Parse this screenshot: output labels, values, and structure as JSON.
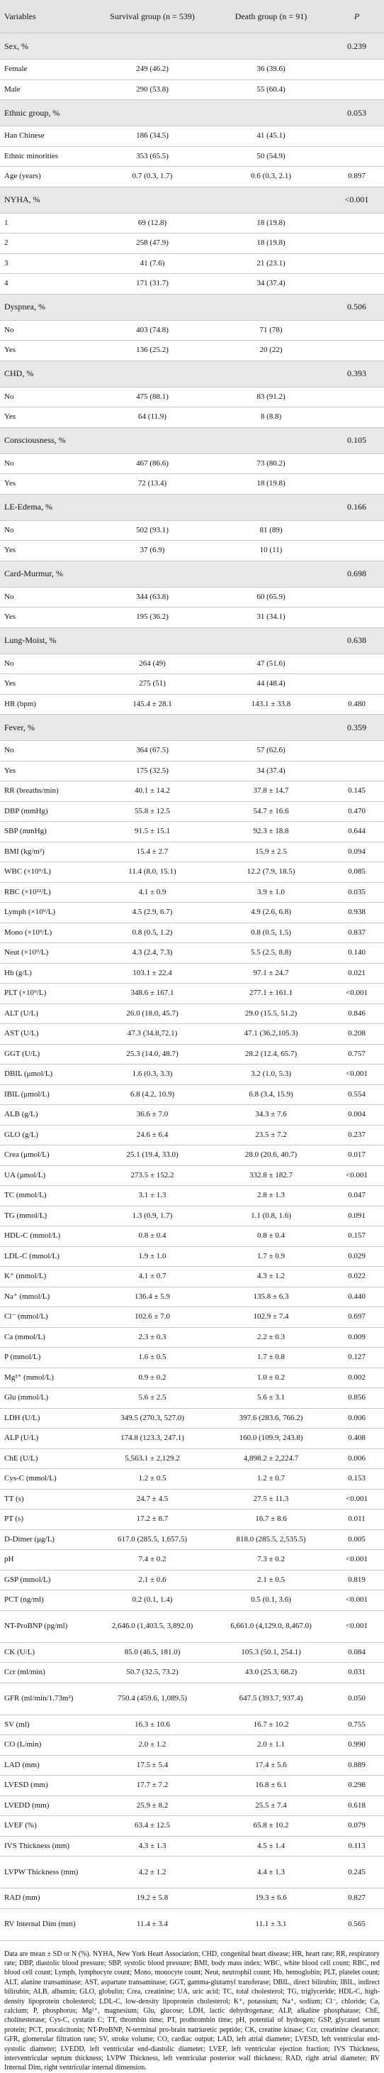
{
  "table": {
    "header": [
      "Variables",
      "Survival group (n = 539)",
      "Death group (n = 91)",
      "P"
    ],
    "rows": [
      {
        "section": "Sex, %",
        "p": "0.239"
      },
      [
        "Female",
        "249 (46.2)",
        "36 (39.6)"
      ],
      [
        "Male",
        "290 (53.8)",
        "55 (60.4)"
      ],
      {
        "section": "Ethnic group, %",
        "p": "0.053"
      },
      [
        "Han Chinese",
        "186 (34.5)",
        "41 (45.1)"
      ],
      [
        "Ethnic minorities",
        "353 (65.5)",
        "50 (54.9)"
      ],
      [
        "Age (years)",
        "0.7 (0.3, 1.7)",
        "0.6 (0.3, 2.1)",
        "0.897"
      ],
      {
        "section": "NYHA, %",
        "p": "<0.001"
      },
      [
        "1",
        "69 (12.8)",
        "18 (19.8)"
      ],
      [
        "2",
        "258 (47.9)",
        "18 (19.8)"
      ],
      [
        "3",
        "41 (7.6)",
        "21 (23.1)"
      ],
      [
        "4",
        "171 (31.7)",
        "34 (37.4)"
      ],
      {
        "section": "Dyspnea, %",
        "p": "0.506"
      },
      [
        "No",
        "403 (74.8)",
        "71 (78)"
      ],
      [
        "Yes",
        "136 (25.2)",
        "20 (22)"
      ],
      {
        "section": "CHD, %",
        "p": "0.393"
      },
      [
        "No",
        "475 (88.1)",
        "83 (91.2)"
      ],
      [
        "Yes",
        "64 (11.9)",
        "8 (8.8)"
      ],
      {
        "section": "Consciousness, %",
        "p": "0.105"
      },
      [
        "No",
        "467 (86.6)",
        "73 (80.2)"
      ],
      [
        "Yes",
        "72 (13.4)",
        "18 (19.8)"
      ],
      {
        "section": "LE-Edema, %",
        "p": "0.166"
      },
      [
        "No",
        "502 (93.1)",
        "81 (89)"
      ],
      [
        "Yes",
        "37 (6.9)",
        "10 (11)"
      ],
      {
        "section": "Card-Murmur, %",
        "p": "0.698"
      },
      [
        "No",
        "344 (63.8)",
        "60 (65.9)"
      ],
      [
        "Yes",
        "195 (36.2)",
        "31 (34.1)"
      ],
      {
        "section": "Lung-Moist, %",
        "p": "0.638"
      },
      [
        "No",
        "264 (49)",
        "47 (51.6)"
      ],
      [
        "Yes",
        "275 (51)",
        "44 (48.4)"
      ],
      [
        "HR (bpm)",
        "145.4 ± 28.1",
        "143.1 ± 33.8",
        "0.480"
      ],
      {
        "section": "Fever, %",
        "p": "0.359"
      },
      [
        "No",
        "364 (67.5)",
        "57 (62.6)"
      ],
      [
        "Yes",
        "175 (32.5)",
        "34 (37.4)"
      ],
      [
        "RR (breaths/min)",
        "40.1 ± 14.2",
        "37.8 ± 14.7",
        "0.145"
      ],
      [
        "DBP (mmHg)",
        "55.8 ± 12.5",
        "54.7 ± 16.6",
        "0.470"
      ],
      [
        "SBP (mmHg)",
        "91.5 ± 15.1",
        "92.3 ± 18.8",
        "0.644"
      ],
      [
        "BMI (kg/m²)",
        "15.4 ± 2.7",
        "15.9 ± 2.5",
        "0.094"
      ],
      [
        "WBC (×10⁹/L)",
        "11.4 (8.0, 15.1)",
        "12.2 (7.9, 18.5)",
        "0.085"
      ],
      [
        "RBC (×10¹²/L)",
        "4.1 ± 0.9",
        "3.9 ± 1.0",
        "0.035"
      ],
      [
        "Lymph (×10⁹/L)",
        "4.5 (2.9, 6.7)",
        "4.9 (2.6, 6.8)",
        "0.938"
      ],
      [
        "Mono (×10⁹/L)",
        "0.8 (0.5, 1.2)",
        "0.8 (0.5, 1.5)",
        "0.837"
      ],
      [
        "Neut (×10⁹/L)",
        "4.3 (2.4, 7.3)",
        "5.5 (2.5, 8.8)",
        "0.140"
      ],
      [
        "Hb (g/L)",
        "103.1 ± 22.4",
        "97.1 ± 24.7",
        "0.021"
      ],
      [
        "PLT (×10⁹/L)",
        "348.6 ± 167.1",
        "277.1 ± 161.1",
        "<0.001"
      ],
      [
        "ALT (U/L)",
        "26.0 (18.0, 45.7)",
        "29.0 (15.5, 51.2)",
        "0.846"
      ],
      [
        "AST (U/L)",
        "47.3 (34.8,72.1)",
        "47.1 (36.2,105.3)",
        "0.208"
      ],
      [
        "GGT (U/L)",
        "25.3 (14.0, 48.7)",
        "28.2 (12.4, 65.7)",
        "0.757"
      ],
      [
        "DBIL (μmol/L)",
        "1.6 (0.3, 3.3)",
        "3.2 (1.0, 5.3)",
        "<0.001"
      ],
      [
        "IBIL (μmol/L)",
        "6.8 (4.2, 10.9)",
        "6.8 (3.4, 15.9)",
        "0.554"
      ],
      [
        "ALB (g/L)",
        "36.6 ± 7.0",
        "34.3 ± 7.6",
        "0.004"
      ],
      [
        "GLO (g/L)",
        "24.6 ± 6.4",
        "23.5 ± 7.2",
        "0.237"
      ],
      [
        "Crea (μmol/L)",
        "25.1 (19.4, 33.0)",
        "28.0 (20.6, 40.7)",
        "0.017"
      ],
      [
        "UA (μmol/L)",
        "273.5 ± 152.2",
        "332.8 ± 182.7",
        "<0.001"
      ],
      [
        "TC (mmol/L)",
        "3.1 ± 1.3",
        "2.8 ± 1.3",
        "0.047"
      ],
      [
        "TG (mmol/L)",
        "1.3 (0.9, 1.7)",
        "1.1 (0.8, 1.6)",
        "0.091"
      ],
      [
        "HDL-C (mmol/L)",
        "0.8 ± 0.4",
        "0.8 ± 0.4",
        "0.157"
      ],
      [
        "LDL-C (mmol/L)",
        "1.9 ± 1.0",
        "1.7 ± 0.9",
        "0.029"
      ],
      [
        "K⁺ (mmol/L)",
        "4.1 ± 0.7",
        "4.3 ± 1.2",
        "0.022"
      ],
      [
        "Na⁺ (mmol/L)",
        "136.4 ± 5.9",
        "135.8 ± 6.3",
        "0.440"
      ],
      [
        "Cl⁻ (mmol/L)",
        "102.6 ± 7.0",
        "102.9 ± 7.4",
        "0.697"
      ],
      [
        "Ca (mmol/L)",
        "2.3 ± 0.3",
        "2.2 ± 0.3",
        "0.009"
      ],
      [
        "P (mmol/L)",
        "1.6 ± 0.5",
        "1.7 ± 0.8",
        "0.127"
      ],
      [
        "Mg²⁺ (mmol/L)",
        "0.9 ± 0.2",
        "1.0 ± 0.2",
        "0.002"
      ],
      [
        "Glu (mmol/L)",
        "5.6 ± 2.5",
        "5.6 ± 3.1",
        "0.856"
      ],
      [
        "LDH (U/L)",
        "349.5 (270.3, 527.0)",
        "397.6 (283.6, 766.2)",
        "0.006"
      ],
      [
        "ALP (U/L)",
        "174.8 (123.3, 247.1)",
        "160.0 (109.9, 243.8)",
        "0.408"
      ],
      [
        "ChE (U/L)",
        "5,563.1 ± 2,129.2",
        "4,898.2 ± 2,224.7",
        "0.006"
      ],
      [
        "Cys-C (mmol/L)",
        "1.2 ± 0.5",
        "1.2 ± 0.7",
        "0.153"
      ],
      [
        "TT (s)",
        "24.7 ± 4.5",
        "27.5 ± 11.3",
        "<0.001"
      ],
      [
        "PT (s)",
        "17.2 ± 8.7",
        "16.7 ± 8.6",
        "0.011"
      ],
      [
        "D-Dimer (μg/L)",
        "617.0 (285.5, 1,657.5)",
        "818.0 (285.5, 2,535.5)",
        "0.005"
      ],
      [
        "pH",
        "7.4 ± 0.2",
        "7.3 ± 0.2",
        "<0.001"
      ],
      [
        "GSP (mmol/L)",
        "2.1 ± 0.6",
        "2.1 ± 0.5",
        "0.819"
      ],
      [
        "PCT (ng/ml)",
        "0.2 (0.1, 1.4)",
        "0.5 (0.1, 3.6)",
        "<0.001"
      ],
      [
        "NT-ProBNP (pg/ml)",
        "2,646.0 (1,403.5, 3,892.0)",
        "6,661.0 (4,129.0, 8,467.0)",
        "<0.001"
      ],
      [
        "CK (U/L)",
        "85.0 (46.5, 181.0)",
        "105.3 (50.1, 254.1)",
        "0.084"
      ],
      [
        "Ccr (ml/min)",
        "50.7 (32.5, 73.2)",
        "43.0 (25.3, 68.2)",
        "0.031"
      ],
      [
        "GFR (ml/min/1.73m²)",
        "750.4 (459.6, 1,089.5)",
        "647.5 (393.7, 937.4)",
        "0.050"
      ],
      [
        "SV (ml)",
        "16.3 ± 10.6",
        "16.7 ± 10.2",
        "0.755"
      ],
      [
        "CO (L/min)",
        "2.0 ± 1.2",
        "2.0 ± 1.1",
        "0.990"
      ],
      [
        "LAD (mm)",
        "17.5 ± 5.4",
        "17.4 ± 5.6",
        "0.889"
      ],
      [
        "LVESD (mm)",
        "17.7 ± 7.2",
        "16.8 ± 6.1",
        "0.298"
      ],
      [
        "LVEDD (mm)",
        "25.9 ± 8.2",
        "25.5 ± 7.4",
        "0.618"
      ],
      [
        "LVEF (%)",
        "63.4 ± 12.5",
        "65.8 ± 10.2",
        "0.079"
      ],
      [
        "IVS Thickness (mm)",
        "4.3 ± 1.3",
        "4.5 ± 1.4",
        "0.113"
      ],
      [
        "LVPW Thickness (mm)",
        "4.2 ± 1.2",
        "4.4 ± 1.3",
        "0.245"
      ],
      [
        "RAD (mm)",
        "19.2 ± 5.8",
        "19.3 ± 6.6",
        "0.827"
      ],
      [
        "RV Internal Dim (mm)",
        "11.4 ± 3.4",
        "11.1 ± 3.1",
        "0.565"
      ]
    ]
  },
  "footnote": "Data are mean ± SD or N (%). NYHA, New York Heart Association; CHD, congenital heart disease; HR, heart rate; RR, respiratory rate; DBP, diastolic blood pressure; SBP, systolic blood pressure; BMI, body mass index; WBC, white blood cell count; RBC, red blood cell count; Lymph, lymphocyte count; Mono, monocyte count; Neut, neutrophil count; Hb, hemoglobin; PLT, platelet count; ALT, alanine transaminase; AST, aspartate transaminase; GGT, gamma-glutamyl transferase; DBIL, direct bilirubin; IBIL, indirect bilirubin; ALB, albumin; GLO, globulin; Crea, creatinine; UA, uric acid; TC, total cholesterol; TG, triglyceride; HDL-C, high-density lipoprotein cholesterol; LDL-C, low-density lipoprotein cholesterol; K⁺, potassium; Na⁺, sodium; Cl⁻, chloride; Ca, calcium; P, phosphorus; Mg²⁺, magnesium; Glu, glucose; LDH, lactic dehydrogenase; ALP, alkaline phosphatase; ChE, cholinesterase; Cys-C, cystatin C; TT, thrombin time; PT, prothrombin time; pH, potential of hydrogen; GSP, glycated serum protein; PCT, procalcitonin; NT-ProBNP, N-terminal pro-brain natriuretic peptide; CK, creatine kinase; Ccr, creatinine clearance; GFR, glomerular filtration rate; SV, stroke volume; CO, cardiac output; LAD, left atrial diameter; LVESD, left ventricular end-systolic diameter; LVEDD, left ventricular end-diastolic diameter; LVEF, left ventricular ejection fraction; IVS Thickness, interventricular septum thickness; LVPW Thickness, left ventricular posterior wall thickness; RAD, right atrial diameter; RV Internal Dim, right ventricular internal dimension."
}
